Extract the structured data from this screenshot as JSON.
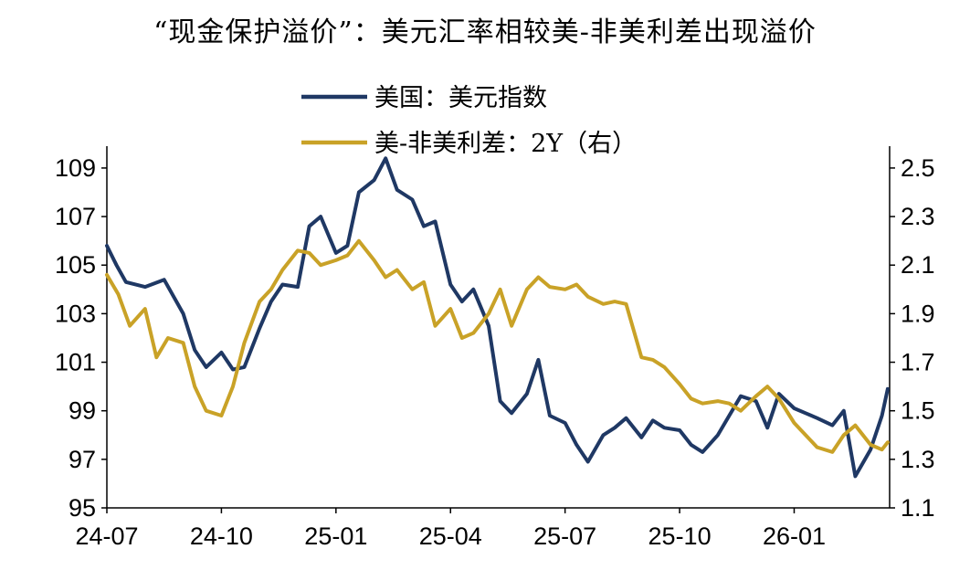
{
  "title": "“现金保护溢价”：美元汇率相较美-非美利差出现溢价",
  "chart_data": {
    "type": "line",
    "title": "“现金保护溢价”：美元汇率相较美-非美利差出现溢价",
    "legend_position": "top-center",
    "x_ticks": [
      "24-07",
      "24-10",
      "25-01",
      "25-04",
      "25-07",
      "25-10",
      "26-01"
    ],
    "x_range": [
      0,
      20.5
    ],
    "y_left": {
      "ticks": [
        "109",
        "107",
        "105",
        "103",
        "101",
        "99",
        "97",
        "95"
      ],
      "range": [
        95,
        109.9
      ]
    },
    "y_right": {
      "ticks": [
        "2.5",
        "2.3",
        "2.1",
        "1.9",
        "1.7",
        "1.5",
        "1.3",
        "1.1"
      ],
      "range": [
        1.1,
        2.59
      ]
    },
    "series": [
      {
        "name": "美国：美元指数",
        "axis": "left",
        "color": "#1f3864",
        "x": [
          0,
          0.25,
          0.5,
          1.0,
          1.5,
          2.0,
          2.3,
          2.6,
          3.0,
          3.3,
          3.6,
          4.0,
          4.3,
          4.6,
          5.0,
          5.3,
          5.6,
          6.0,
          6.3,
          6.6,
          7.0,
          7.3,
          7.6,
          8.0,
          8.3,
          8.6,
          9.0,
          9.3,
          9.6,
          10.0,
          10.3,
          10.6,
          11.0,
          11.3,
          11.6,
          12.0,
          12.3,
          12.6,
          13.0,
          13.3,
          13.6,
          14.0,
          14.3,
          14.6,
          15.0,
          15.3,
          15.6,
          16.0,
          16.3,
          16.6,
          17.0,
          17.3,
          17.6,
          18.0,
          18.3,
          18.6,
          19.0,
          19.3,
          19.6,
          20.0,
          20.3,
          20.45
        ],
        "y": [
          105.8,
          105.0,
          104.3,
          104.1,
          104.4,
          103.0,
          101.5,
          100.8,
          101.4,
          100.7,
          100.8,
          102.4,
          103.5,
          104.2,
          104.1,
          106.6,
          107.0,
          105.5,
          105.8,
          108.0,
          108.5,
          109.4,
          108.1,
          107.7,
          106.6,
          106.8,
          104.2,
          103.5,
          104.0,
          102.5,
          99.4,
          98.9,
          99.7,
          101.1,
          98.8,
          98.5,
          97.6,
          96.9,
          98.0,
          98.3,
          98.7,
          97.9,
          98.6,
          98.3,
          98.2,
          97.6,
          97.3,
          98.0,
          98.8,
          99.6,
          99.4,
          98.3,
          99.7,
          99.1,
          98.9,
          98.7,
          98.4,
          99.0,
          96.3,
          97.4,
          98.8,
          99.9
        ]
      },
      {
        "name": "美-非美利差：2Y（右）",
        "axis": "right",
        "color": "#c9a227",
        "x": [
          0,
          0.3,
          0.6,
          1.0,
          1.3,
          1.6,
          2.0,
          2.3,
          2.6,
          3.0,
          3.3,
          3.6,
          4.0,
          4.3,
          4.6,
          5.0,
          5.3,
          5.6,
          6.0,
          6.3,
          6.6,
          7.0,
          7.3,
          7.6,
          8.0,
          8.3,
          8.6,
          9.0,
          9.3,
          9.6,
          10.0,
          10.3,
          10.6,
          11.0,
          11.3,
          11.6,
          12.0,
          12.3,
          12.6,
          13.0,
          13.3,
          13.6,
          14.0,
          14.3,
          14.6,
          15.0,
          15.3,
          15.6,
          16.0,
          16.3,
          16.6,
          17.0,
          17.3,
          17.6,
          18.0,
          18.3,
          18.6,
          19.0,
          19.3,
          19.6,
          20.0,
          20.3,
          20.45
        ],
        "y": [
          2.06,
          1.98,
          1.85,
          1.92,
          1.72,
          1.8,
          1.78,
          1.6,
          1.5,
          1.48,
          1.6,
          1.78,
          1.95,
          2.0,
          2.08,
          2.16,
          2.15,
          2.1,
          2.12,
          2.14,
          2.2,
          2.12,
          2.05,
          2.08,
          2.0,
          2.03,
          1.85,
          1.92,
          1.8,
          1.82,
          1.9,
          2.0,
          1.85,
          2.0,
          2.05,
          2.01,
          2.0,
          2.02,
          1.97,
          1.94,
          1.95,
          1.94,
          1.72,
          1.71,
          1.68,
          1.61,
          1.55,
          1.53,
          1.54,
          1.53,
          1.5,
          1.56,
          1.6,
          1.55,
          1.45,
          1.4,
          1.35,
          1.33,
          1.4,
          1.44,
          1.36,
          1.34,
          1.37
        ]
      }
    ]
  }
}
